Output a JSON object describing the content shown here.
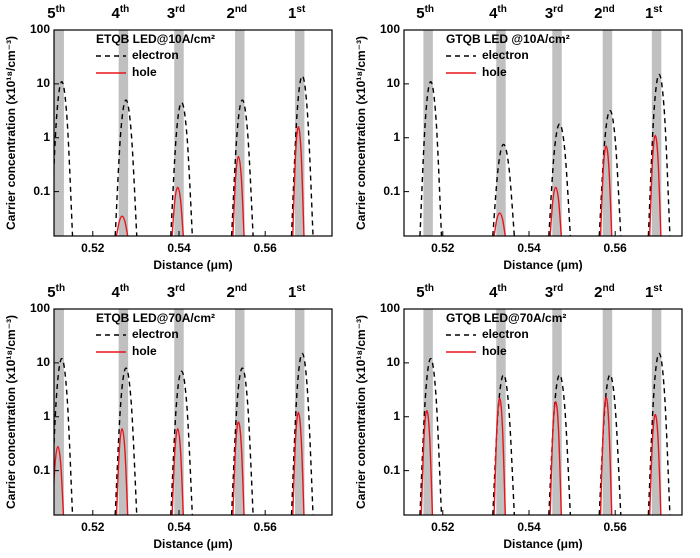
{
  "chart_data": [
    {
      "type": "line",
      "title": "ETQB LED@10A/cm²",
      "xlabel": "Distance (μm)",
      "ylabel": "Carrier concentration (x10¹⁸/cm⁻³)",
      "xlim": [
        0.511,
        0.5755
      ],
      "xticks": [
        0.52,
        0.54,
        0.56
      ],
      "ylim": [
        0.015,
        100
      ],
      "yticks": [
        0.1,
        1,
        10,
        100
      ],
      "ylog": true,
      "wells": {
        "x": [
          0.5122,
          0.5271,
          0.54,
          0.5541,
          0.568
        ],
        "width": 0.0022,
        "color": "#c0c0c0",
        "labels": [
          {
            "number": "5",
            "suffix": "th"
          },
          {
            "number": "4",
            "suffix": "th"
          },
          {
            "number": "3",
            "suffix": "rd"
          },
          {
            "number": "2",
            "suffix": "nd"
          },
          {
            "number": "1",
            "suffix": "st"
          }
        ]
      },
      "series": [
        {
          "name": "electron",
          "color": "#000000",
          "dashed": true,
          "x": [
            0.5103,
            0.51155,
            0.5128,
            0.51405,
            0.5153,
            null,
            0.5252,
            0.52645,
            0.5277,
            0.52895,
            0.5302,
            null,
            0.5381,
            0.53935,
            0.5406,
            0.54185,
            0.5431,
            null,
            0.5522,
            0.55345,
            0.5547,
            0.55595,
            0.5572,
            null,
            0.5661,
            0.56735,
            0.5686,
            0.56985,
            0.5711
          ],
          "values": [
            0.015,
            2.1,
            11,
            2.1,
            0.015,
            null,
            0.015,
            1.17,
            5,
            1.17,
            0.015,
            null,
            0.015,
            1.08,
            4.5,
            1.08,
            0.015,
            null,
            0.015,
            1.17,
            5,
            1.17,
            0.015,
            null,
            0.015,
            2.53,
            14,
            2.53,
            0.015
          ]
        },
        {
          "name": "hole",
          "color": "#e8141c",
          "dashed": false,
          "x": [
            0.5255,
            0.52615,
            0.5268,
            0.52745,
            0.5281,
            null,
            0.5384,
            0.53905,
            0.5397,
            0.54035,
            0.541,
            null,
            0.5525,
            0.55315,
            0.5538,
            0.55445,
            0.5551,
            null,
            0.5664,
            0.56705,
            0.5677,
            0.56835,
            0.569
          ],
          "values": [
            0.015,
            0.028,
            0.035,
            0.028,
            0.015,
            null,
            0.015,
            0.071,
            0.12,
            0.071,
            0.015,
            null,
            0.015,
            0.19,
            0.45,
            0.19,
            0.015,
            null,
            0.015,
            0.5,
            1.6,
            0.5,
            0.015
          ]
        }
      ]
    },
    {
      "type": "line",
      "title": "GTQB LED @10A/cm²",
      "xlabel": "Distance (μm)",
      "ylabel": "Carrier concentration (x10¹⁸/cm⁻³)",
      "xlim": [
        0.511,
        0.5755
      ],
      "xticks": [
        0.52,
        0.54,
        0.56
      ],
      "ylim": [
        0.015,
        100
      ],
      "yticks": [
        0.1,
        1,
        10,
        100
      ],
      "ylog": true,
      "wells": {
        "x": [
          0.5166,
          0.5335,
          0.5465,
          0.5582,
          0.5696
        ],
        "width": 0.0022,
        "color": "#c0c0c0",
        "labels": [
          {
            "number": "5",
            "suffix": "th"
          },
          {
            "number": "4",
            "suffix": "th"
          },
          {
            "number": "3",
            "suffix": "rd"
          },
          {
            "number": "2",
            "suffix": "nd"
          },
          {
            "number": "1",
            "suffix": "st"
          }
        ]
      },
      "series": [
        {
          "name": "electron",
          "color": "#000000",
          "dashed": true,
          "x": [
            0.5147,
            0.51595,
            0.5172,
            0.51845,
            0.5197,
            null,
            0.5316,
            0.53285,
            0.5341,
            0.53535,
            0.5366,
            null,
            0.5446,
            0.54585,
            0.5471,
            0.54835,
            0.5496,
            null,
            0.5563,
            0.55755,
            0.5588,
            0.56005,
            0.5613,
            null,
            0.5677,
            0.56895,
            0.5702,
            0.57145,
            0.5727
          ],
          "values": [
            0.015,
            2.11,
            11,
            2.11,
            0.015,
            null,
            0.015,
            0.28,
            0.75,
            0.28,
            0.015,
            null,
            0.015,
            0.54,
            1.8,
            0.54,
            0.015,
            null,
            0.015,
            0.84,
            3.2,
            0.84,
            0.015,
            null,
            0.015,
            2.67,
            15,
            2.67,
            0.015
          ]
        },
        {
          "name": "hole",
          "color": "#e8141c",
          "dashed": false,
          "x": [
            0.5319,
            0.53255,
            0.5332,
            0.53385,
            0.5345,
            null,
            0.5449,
            0.54555,
            0.5462,
            0.54685,
            0.5475,
            null,
            0.5566,
            0.55725,
            0.5579,
            0.55855,
            0.5592,
            null,
            0.568,
            0.56865,
            0.5693,
            0.56995,
            0.5706
          ],
          "values": [
            0.015,
            0.031,
            0.04,
            0.031,
            0.015,
            null,
            0.015,
            0.071,
            0.12,
            0.071,
            0.015,
            null,
            0.015,
            0.27,
            0.7,
            0.27,
            0.015,
            null,
            0.015,
            0.38,
            1.1,
            0.38,
            0.015
          ]
        }
      ]
    },
    {
      "type": "line",
      "title": "ETQB LED@70A/cm²",
      "xlabel": "Distance (μm)",
      "ylabel": "Carrier concentration (x10¹⁸/cm⁻³)",
      "xlim": [
        0.511,
        0.5755
      ],
      "xticks": [
        0.52,
        0.54,
        0.56
      ],
      "ylim": [
        0.015,
        100
      ],
      "yticks": [
        0.1,
        1,
        10,
        100
      ],
      "ylog": true,
      "wells": {
        "x": [
          0.5122,
          0.5271,
          0.54,
          0.5541,
          0.568
        ],
        "width": 0.0022,
        "color": "#c0c0c0",
        "labels": [
          {
            "number": "5",
            "suffix": "th"
          },
          {
            "number": "4",
            "suffix": "th"
          },
          {
            "number": "3",
            "suffix": "rd"
          },
          {
            "number": "2",
            "suffix": "nd"
          },
          {
            "number": "1",
            "suffix": "st"
          }
        ]
      },
      "series": [
        {
          "name": "electron",
          "color": "#000000",
          "dashed": true,
          "x": [
            0.5103,
            0.51155,
            0.5128,
            0.51405,
            0.5153,
            null,
            0.5252,
            0.52645,
            0.5277,
            0.52895,
            0.5302,
            null,
            0.5381,
            0.53935,
            0.5406,
            0.54185,
            0.5431,
            null,
            0.5522,
            0.55345,
            0.5547,
            0.55595,
            0.5572,
            null,
            0.5661,
            0.56735,
            0.5686,
            0.56985,
            0.5711
          ],
          "values": [
            0.015,
            2.26,
            12,
            2.26,
            0.015,
            null,
            0.015,
            1.67,
            8,
            1.67,
            0.015,
            null,
            0.015,
            1.51,
            7,
            1.51,
            0.015,
            null,
            0.015,
            1.67,
            8,
            1.67,
            0.015,
            null,
            0.015,
            2.67,
            15,
            2.67,
            0.015
          ]
        },
        {
          "name": "hole",
          "color": "#e8141c",
          "dashed": false,
          "x": [
            0.5106,
            0.51125,
            0.5119,
            0.51255,
            0.5132,
            null,
            0.5255,
            0.52615,
            0.5268,
            0.52745,
            0.5281,
            null,
            0.5384,
            0.53905,
            0.5397,
            0.54035,
            0.541,
            null,
            0.5525,
            0.55315,
            0.5538,
            0.55445,
            0.5551,
            null,
            0.5664,
            0.56705,
            0.5677,
            0.56835,
            0.569
          ],
          "values": [
            0.015,
            0.135,
            0.28,
            0.135,
            0.015,
            null,
            0.015,
            0.24,
            0.6,
            0.24,
            0.015,
            null,
            0.015,
            0.24,
            0.6,
            0.24,
            0.015,
            null,
            0.015,
            0.3,
            0.8,
            0.3,
            0.015,
            null,
            0.015,
            0.4,
            1.2,
            0.4,
            0.015
          ]
        }
      ]
    },
    {
      "type": "line",
      "title": "GTQB LED@70A/cm²",
      "xlabel": "Distance (μm)",
      "ylabel": "Carrier concentration (x10¹⁸/cm⁻³)",
      "xlim": [
        0.511,
        0.5755
      ],
      "xticks": [
        0.52,
        0.54,
        0.56
      ],
      "ylim": [
        0.015,
        100
      ],
      "yticks": [
        0.1,
        1,
        10,
        100
      ],
      "ylog": true,
      "wells": {
        "x": [
          0.5166,
          0.5335,
          0.5465,
          0.5582,
          0.5696
        ],
        "width": 0.0022,
        "color": "#c0c0c0",
        "labels": [
          {
            "number": "5",
            "suffix": "th"
          },
          {
            "number": "4",
            "suffix": "th"
          },
          {
            "number": "3",
            "suffix": "rd"
          },
          {
            "number": "2",
            "suffix": "nd"
          },
          {
            "number": "1",
            "suffix": "st"
          }
        ]
      },
      "series": [
        {
          "name": "electron",
          "color": "#000000",
          "dashed": true,
          "x": [
            0.5147,
            0.51595,
            0.5172,
            0.51845,
            0.5197,
            null,
            0.5316,
            0.53285,
            0.5341,
            0.53535,
            0.5366,
            null,
            0.5446,
            0.54585,
            0.5471,
            0.54835,
            0.5496,
            null,
            0.5563,
            0.55755,
            0.5588,
            0.56005,
            0.5613,
            null,
            0.5677,
            0.56895,
            0.5702,
            0.57145,
            0.5727
          ],
          "values": [
            0.015,
            2.26,
            12,
            2.26,
            0.015,
            null,
            0.015,
            1.34,
            6,
            1.34,
            0.015,
            null,
            0.015,
            1.34,
            6,
            1.34,
            0.015,
            null,
            0.015,
            1.34,
            6,
            1.34,
            0.015,
            null,
            0.015,
            2.67,
            15,
            2.67,
            0.015
          ]
        },
        {
          "name": "hole",
          "color": "#e8141c",
          "dashed": false,
          "x": [
            0.515,
            0.51565,
            0.5163,
            0.51695,
            0.5176,
            null,
            0.5319,
            0.53255,
            0.5332,
            0.53385,
            0.5345,
            null,
            0.5449,
            0.54555,
            0.5462,
            0.54685,
            0.5475,
            null,
            0.5566,
            0.55725,
            0.5579,
            0.55855,
            0.5592,
            null,
            0.568,
            0.56865,
            0.5693,
            0.56995,
            0.5706
          ],
          "values": [
            0.015,
            0.43,
            1.3,
            0.43,
            0.015,
            null,
            0.015,
            0.63,
            2.2,
            0.63,
            0.015,
            null,
            0.015,
            0.57,
            1.9,
            0.57,
            0.015,
            null,
            0.015,
            0.65,
            2.3,
            0.65,
            0.015,
            null,
            0.015,
            0.38,
            1.1,
            0.38,
            0.015
          ]
        }
      ]
    }
  ]
}
